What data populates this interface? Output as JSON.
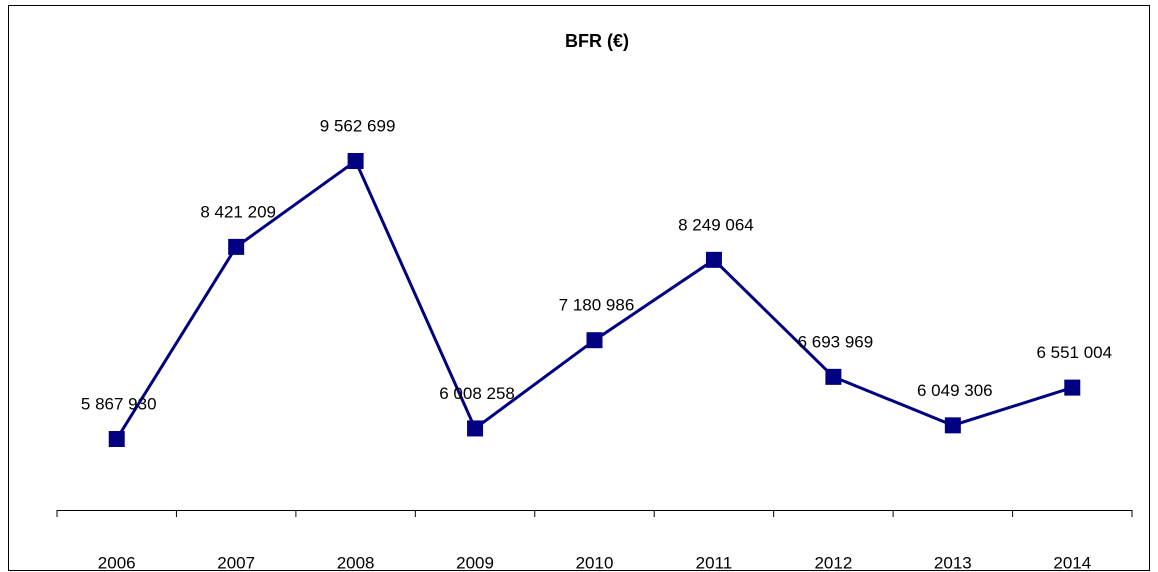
{
  "chart_data": {
    "type": "line",
    "title": "BFR (€)",
    "categories": [
      "2006",
      "2007",
      "2008",
      "2009",
      "2010",
      "2011",
      "2012",
      "2013",
      "2014"
    ],
    "series": [
      {
        "color": "#000080",
        "values": [
          5867930,
          8421209,
          9562699,
          6008258,
          7180986,
          8249064,
          6693969,
          6049306,
          6551004
        ],
        "value_labels": [
          "5 867 930",
          "8 421 209",
          "9 562 699",
          "6 008 258",
          "7 180 986",
          "8 249 064",
          "6 693 969",
          "6 049 306",
          "6 551 004"
        ]
      }
    ],
    "grid": false,
    "legend": false
  }
}
